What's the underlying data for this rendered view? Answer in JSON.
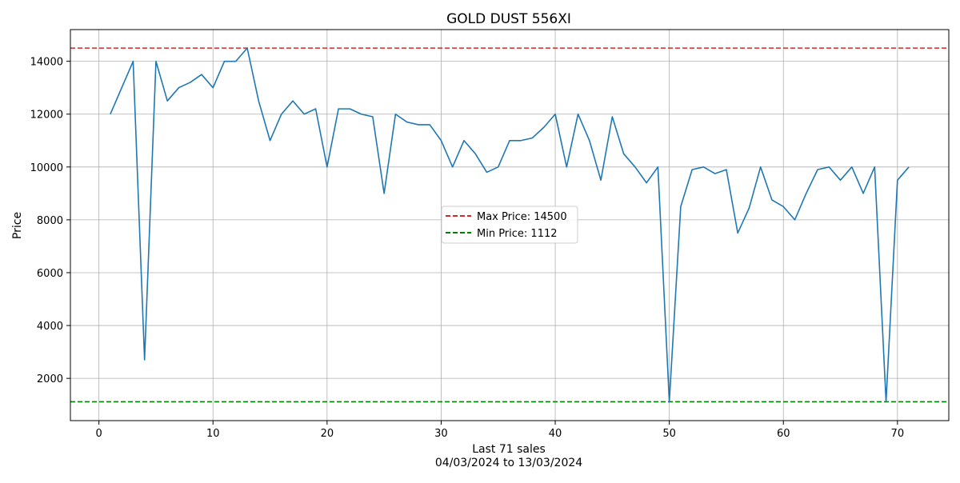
{
  "chart_data": {
    "type": "line",
    "title": "GOLD DUST 556XI",
    "xlabel": "Last 71 sales",
    "xlabel_sub": "04/03/2024 to 13/03/2024",
    "ylabel": "Price",
    "xlim": [
      -2.5,
      74.5
    ],
    "ylim": [
      400,
      15200
    ],
    "xticks": [
      0,
      10,
      20,
      30,
      40,
      50,
      60,
      70
    ],
    "yticks": [
      2000,
      4000,
      6000,
      8000,
      10000,
      12000,
      14000
    ],
    "grid": true,
    "legend_position": "center",
    "series": [
      {
        "color": "#1f77b4",
        "x": [
          1,
          2,
          3,
          4,
          5,
          6,
          7,
          8,
          9,
          10,
          11,
          12,
          13,
          14,
          15,
          16,
          17,
          18,
          19,
          20,
          21,
          22,
          23,
          24,
          25,
          26,
          27,
          28,
          29,
          30,
          31,
          32,
          33,
          34,
          35,
          36,
          37,
          38,
          39,
          40,
          41,
          42,
          43,
          44,
          45,
          46,
          47,
          48,
          49,
          50,
          51,
          52,
          53,
          54,
          55,
          56,
          57,
          58,
          59,
          60,
          61,
          62,
          63,
          64,
          65,
          66,
          67,
          68,
          69,
          70,
          71
        ],
        "values": [
          12000,
          13000,
          14000,
          2700,
          14000,
          12500,
          13000,
          13200,
          13500,
          13000,
          14000,
          14000,
          14500,
          12500,
          11000,
          12000,
          12500,
          12000,
          12200,
          10000,
          12200,
          12200,
          12000,
          11900,
          9000,
          12000,
          11700,
          11600,
          11600,
          11000,
          10000,
          11000,
          10500,
          9800,
          10000,
          11000,
          11000,
          11100,
          11500,
          12000,
          10000,
          12000,
          11000,
          9500,
          11900,
          10500,
          10000,
          9400,
          10000,
          1112,
          8500,
          9900,
          10000,
          9750,
          9900,
          7500,
          8450,
          10000,
          8750,
          8500,
          8000,
          9000,
          9900,
          10000,
          9500,
          10000,
          9000,
          10000,
          1112,
          9500,
          10000
        ]
      }
    ],
    "reference_lines": [
      {
        "name": "Max Price: 14500",
        "value": 14500,
        "color": "#d62728"
      },
      {
        "name": "Min Price: 1112",
        "value": 1112,
        "color": "#008000"
      }
    ]
  }
}
